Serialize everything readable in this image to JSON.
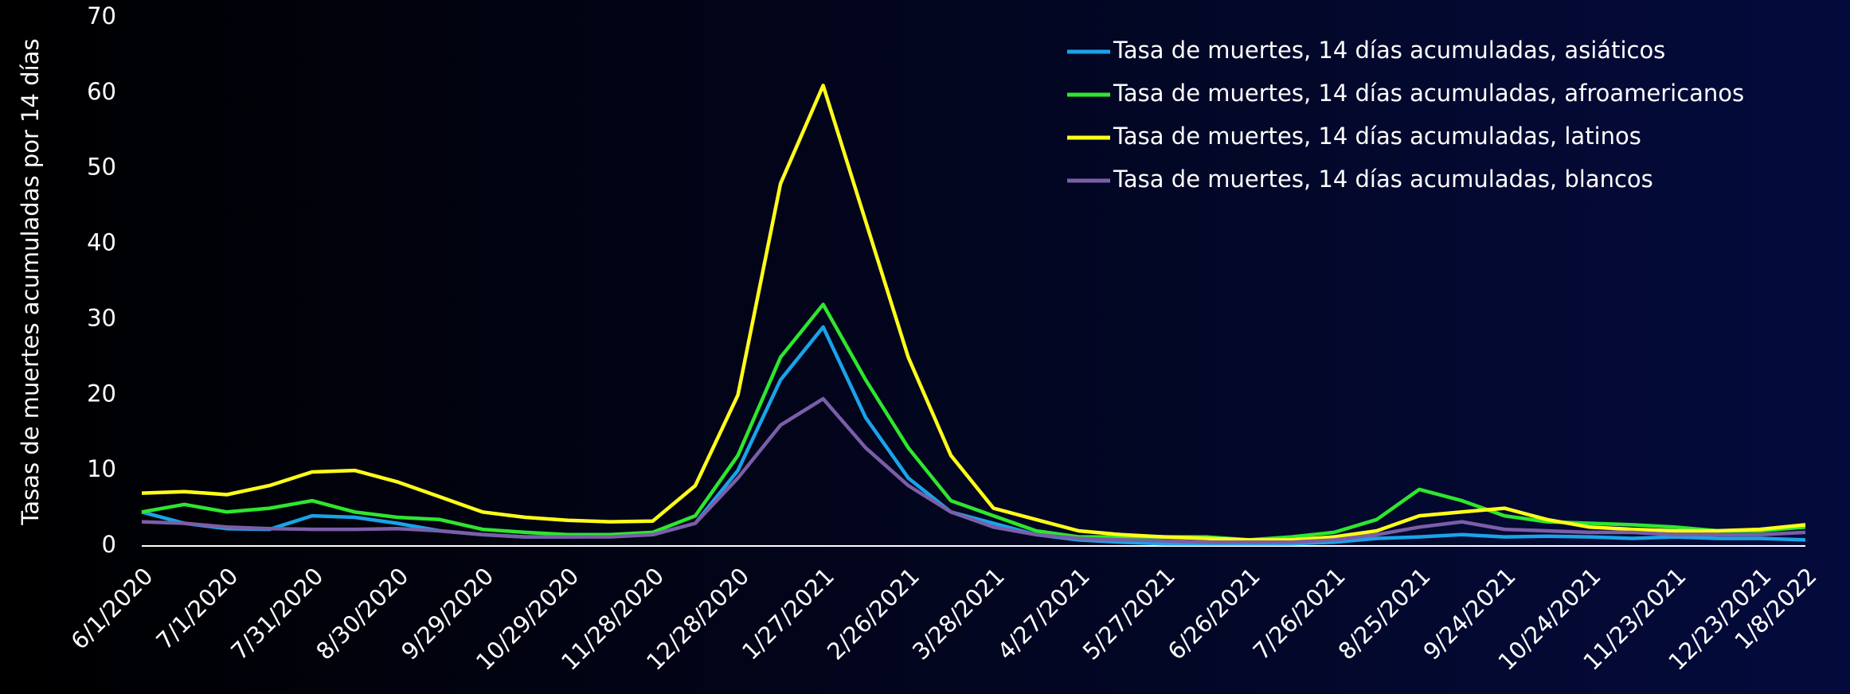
{
  "chart_data": {
    "type": "line",
    "ylabel": "Tasas de muertes acumuladas por 14 días",
    "x": [
      "6/1/2020",
      "6/16/2020",
      "7/1/2020",
      "7/16/2020",
      "7/31/2020",
      "8/15/2020",
      "8/30/2020",
      "9/14/2020",
      "9/29/2020",
      "10/14/2020",
      "10/29/2020",
      "11/13/2020",
      "11/28/2020",
      "12/13/2020",
      "12/28/2020",
      "1/12/2021",
      "1/27/2021",
      "2/11/2021",
      "2/26/2021",
      "3/13/2021",
      "3/28/2021",
      "4/12/2021",
      "4/27/2021",
      "5/12/2021",
      "5/27/2021",
      "6/11/2021",
      "6/26/2021",
      "7/11/2021",
      "7/26/2021",
      "8/10/2021",
      "8/25/2021",
      "9/9/2021",
      "9/24/2021",
      "10/9/2021",
      "10/24/2021",
      "11/8/2021",
      "11/23/2021",
      "12/8/2021",
      "12/23/2021",
      "1/8/2022"
    ],
    "series": [
      {
        "name": "Tasa de muertes, 14 días acumuladas, asiáticos",
        "color": "#1aa3e8",
        "values": [
          4.5,
          3,
          2.3,
          2.2,
          4,
          3.8,
          3,
          2,
          1.5,
          1.2,
          1.2,
          1.3,
          1.5,
          3,
          10,
          22,
          29,
          17,
          9,
          4.5,
          3,
          1.5,
          0.8,
          0.5,
          0.3,
          0.3,
          0.3,
          0.3,
          0.5,
          1,
          1.2,
          1.5,
          1.2,
          1.3,
          1.2,
          1,
          1.2,
          1,
          1,
          0.8
        ]
      },
      {
        "name": "Tasa de muertes, 14 días acumuladas, afroamericanos",
        "color": "#2ee62e",
        "values": [
          4.5,
          5.5,
          4.5,
          5,
          6,
          4.5,
          3.8,
          3.5,
          2.2,
          1.8,
          1.5,
          1.5,
          1.8,
          4,
          12,
          25,
          32,
          22,
          13,
          6,
          4,
          2,
          1.2,
          1.2,
          1.2,
          1.2,
          0.8,
          1.2,
          1.8,
          3.5,
          7.5,
          6,
          4,
          3.2,
          3,
          2.8,
          2.5,
          2,
          2,
          2.5
        ]
      },
      {
        "name": "Tasa de muertes, 14 días acumuladas, latinos",
        "color": "#ffff1a",
        "values": [
          7,
          7.2,
          6.8,
          8,
          9.8,
          10,
          8.5,
          6.5,
          4.5,
          3.8,
          3.4,
          3.2,
          3.3,
          8,
          20,
          48,
          61,
          43,
          25,
          12,
          5,
          3.5,
          2,
          1.5,
          1.2,
          1,
          0.8,
          0.8,
          1.2,
          2,
          4,
          4.5,
          5,
          3.5,
          2.5,
          2.2,
          2,
          2,
          2.2,
          2.8
        ]
      },
      {
        "name": "Tasa de muertes, 14 días acumuladas, blancos",
        "color": "#7b5ea7",
        "values": [
          3.2,
          3,
          2.5,
          2.3,
          2.2,
          2.2,
          2.3,
          2,
          1.5,
          1.2,
          1.2,
          1.2,
          1.5,
          3,
          9,
          16,
          19.5,
          13,
          8,
          4.5,
          2.5,
          1.5,
          1,
          0.8,
          0.7,
          0.5,
          0.5,
          0.5,
          0.8,
          1.5,
          2.5,
          3.2,
          2.2,
          2,
          1.8,
          1.8,
          1.5,
          1.5,
          1.5,
          1.8
        ]
      }
    ],
    "xlim": [
      "6/1/2020",
      "1/8/2022"
    ],
    "xticks": [
      "6/1/2020",
      "7/1/2020",
      "7/31/2020",
      "8/30/2020",
      "9/29/2020",
      "10/29/2020",
      "11/28/2020",
      "12/28/2020",
      "1/27/2021",
      "2/26/2021",
      "3/28/2021",
      "4/27/2021",
      "5/27/2021",
      "6/26/2021",
      "7/26/2021",
      "8/25/2021",
      "9/24/2021",
      "10/24/2021",
      "11/23/2021",
      "12/23/2021",
      "1/8/2022"
    ],
    "ylim": [
      0,
      70
    ],
    "yticks": [
      0,
      10,
      20,
      30,
      40,
      50,
      60,
      70
    ],
    "grid": false,
    "legend": "top-right"
  }
}
